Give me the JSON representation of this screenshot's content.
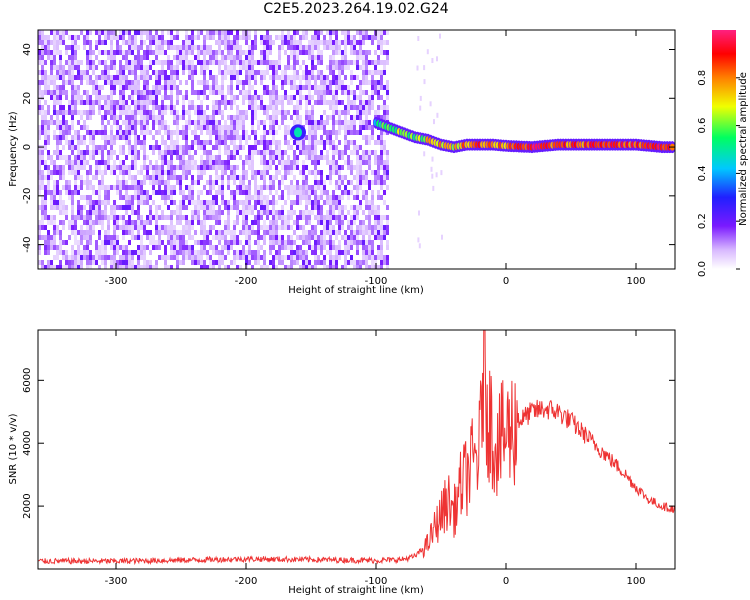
{
  "title": "C2E5.2023.264.19.02.G24",
  "colors": {
    "snr_line": "#ee3333",
    "axis": "#000000"
  },
  "chart_data": [
    {
      "type": "heatmap",
      "title": "",
      "xlabel": "Height of straight line (km)",
      "ylabel": "Frequency (Hz)",
      "xlim": [
        -360,
        130
      ],
      "ylim": [
        -50,
        48
      ],
      "xticks": [
        -300,
        -200,
        -100,
        0,
        100
      ],
      "yticks": [
        -40,
        -20,
        0,
        20,
        40
      ],
      "colorbar": {
        "label": "Normalized spectral amplitude",
        "range": [
          0,
          1
        ],
        "ticks": [
          0.0,
          0.2,
          0.4,
          0.6,
          0.8
        ],
        "colormap": [
          "#ffffff",
          "#d8b8ff",
          "#7a1aff",
          "#2020ff",
          "#00c8ff",
          "#00ff60",
          "#f0ff00",
          "#ff8000",
          "#ff0000",
          "#ff2080"
        ]
      },
      "features": {
        "noise_region_x": [
          -360,
          -90
        ],
        "signal_track": [
          {
            "x": -100,
            "y": 10,
            "a": 0.5
          },
          {
            "x": -90,
            "y": 8,
            "a": 0.6
          },
          {
            "x": -80,
            "y": 6,
            "a": 0.65
          },
          {
            "x": -70,
            "y": 4,
            "a": 0.6
          },
          {
            "x": -60,
            "y": 3,
            "a": 0.7
          },
          {
            "x": -50,
            "y": 1,
            "a": 0.75
          },
          {
            "x": -40,
            "y": 0,
            "a": 0.7
          },
          {
            "x": -30,
            "y": 1,
            "a": 0.8
          },
          {
            "x": -20,
            "y": 1,
            "a": 0.85
          },
          {
            "x": -10,
            "y": 1,
            "a": 0.8
          },
          {
            "x": 0,
            "y": 0.5,
            "a": 0.75
          },
          {
            "x": 20,
            "y": 0,
            "a": 0.95
          },
          {
            "x": 40,
            "y": 1,
            "a": 0.8
          },
          {
            "x": 60,
            "y": 1,
            "a": 0.85
          },
          {
            "x": 80,
            "y": 1,
            "a": 0.9
          },
          {
            "x": 100,
            "y": 1,
            "a": 0.85
          },
          {
            "x": 120,
            "y": 0,
            "a": 0.9
          },
          {
            "x": 130,
            "y": 0,
            "a": 0.8
          }
        ],
        "isolated_blob": {
          "x": -160,
          "y": 6,
          "a": 0.5
        }
      }
    },
    {
      "type": "line",
      "title": "",
      "xlabel": "Height of straight line (km)",
      "ylabel": "SNR (10 * v/v)",
      "xlim": [
        -360,
        130
      ],
      "ylim": [
        0,
        7600
      ],
      "xticks": [
        -300,
        -200,
        -100,
        0,
        100
      ],
      "yticks": [
        2000,
        4000,
        6000
      ],
      "series": [
        {
          "x": [
            -360,
            -300,
            -250,
            -200,
            -150,
            -100,
            -80,
            -70,
            -60,
            -55,
            -50,
            -45,
            -40,
            -35,
            -30,
            -25,
            -20,
            -17,
            -15,
            -10,
            -5,
            0,
            10,
            20,
            30,
            40,
            50,
            60,
            70,
            80,
            90,
            100,
            110,
            120,
            130
          ],
          "y": [
            250,
            250,
            280,
            320,
            300,
            270,
            300,
            400,
            800,
            1300,
            1700,
            2200,
            1800,
            2600,
            3000,
            3400,
            3800,
            7500,
            5500,
            4200,
            4000,
            4300,
            4700,
            5000,
            5100,
            5000,
            4700,
            4300,
            3900,
            3500,
            3100,
            2600,
            2200,
            2000,
            1900
          ]
        }
      ]
    }
  ]
}
